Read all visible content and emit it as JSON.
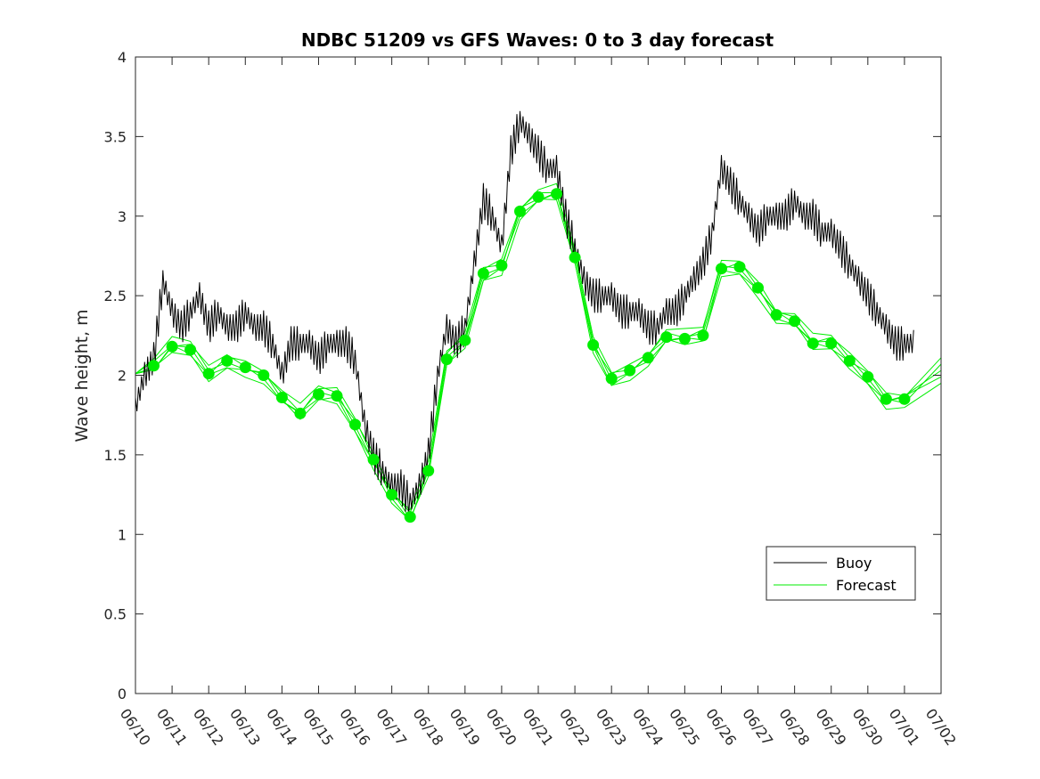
{
  "chart_data": {
    "type": "line",
    "title": "NDBC 51209 vs GFS Waves: 0 to 3 day forecast",
    "xlabel": "",
    "ylabel": "Wave height, m",
    "ylim": [
      0,
      4
    ],
    "y_ticks": [
      "0",
      "0.5",
      "1",
      "1.5",
      "2",
      "2.5",
      "3",
      "3.5",
      "4"
    ],
    "x_ticks": [
      "06/10",
      "06/11",
      "06/12",
      "06/13",
      "06/14",
      "06/15",
      "06/16",
      "06/17",
      "06/18",
      "06/19",
      "06/20",
      "06/21",
      "06/22",
      "06/23",
      "06/24",
      "06/25",
      "06/26",
      "06/27",
      "06/28",
      "06/29",
      "06/30",
      "07/01",
      "07/02"
    ],
    "x_unit": "days since 06/10",
    "xlim": [
      0,
      22
    ],
    "grid": false,
    "legend": {
      "position": "bottom-right",
      "entries": [
        "Buoy",
        "Forecast"
      ]
    },
    "colors": {
      "buoy": "#000000",
      "forecast": "#00ee00"
    },
    "buoy": {
      "name": "Buoy",
      "x": [
        0,
        0.25,
        0.5,
        0.75,
        1,
        1.25,
        1.5,
        1.75,
        2,
        2.25,
        2.5,
        2.75,
        3,
        3.25,
        3.5,
        3.75,
        4,
        4.25,
        4.5,
        4.75,
        5,
        5.25,
        5.5,
        5.75,
        6,
        6.25,
        6.5,
        6.75,
        7,
        7.25,
        7.5,
        7.75,
        8,
        8.25,
        8.5,
        8.75,
        9,
        9.25,
        9.5,
        9.75,
        10,
        10.25,
        10.5,
        10.75,
        11,
        11.25,
        11.5,
        11.75,
        12,
        12.25,
        12.5,
        12.75,
        13,
        13.25,
        13.5,
        13.75,
        14,
        14.25,
        14.5,
        14.75,
        15,
        15.25,
        15.5,
        15.75,
        16,
        16.25,
        16.5,
        16.75,
        17,
        17.25,
        17.5,
        17.75,
        18,
        18.25,
        18.5,
        18.75,
        19,
        19.25,
        19.5,
        19.75,
        20,
        20.25,
        20.5,
        20.75,
        21,
        21.25
      ],
      "y": [
        1.8,
        2.0,
        2.1,
        2.6,
        2.4,
        2.3,
        2.4,
        2.5,
        2.3,
        2.4,
        2.3,
        2.3,
        2.4,
        2.3,
        2.3,
        2.2,
        2.0,
        2.2,
        2.2,
        2.2,
        2.1,
        2.2,
        2.2,
        2.2,
        2.1,
        1.7,
        1.5,
        1.4,
        1.3,
        1.3,
        1.2,
        1.3,
        1.5,
        2.0,
        2.3,
        2.2,
        2.3,
        2.7,
        3.1,
        3.0,
        2.8,
        3.4,
        3.6,
        3.5,
        3.4,
        3.3,
        3.3,
        3.0,
        2.8,
        2.6,
        2.5,
        2.5,
        2.5,
        2.4,
        2.4,
        2.4,
        2.3,
        2.3,
        2.4,
        2.4,
        2.5,
        2.6,
        2.7,
        2.9,
        3.3,
        3.2,
        3.1,
        3.0,
        2.9,
        3.0,
        3.0,
        3.0,
        3.1,
        3.0,
        3.0,
        2.9,
        2.9,
        2.8,
        2.7,
        2.6,
        2.5,
        2.4,
        2.3,
        2.2,
        2.2,
        2.2
      ]
    },
    "forecast": {
      "name": "Forecast",
      "x": [
        0.5,
        1.0,
        1.5,
        2.0,
        2.5,
        3.0,
        3.5,
        4.0,
        4.5,
        5.0,
        5.5,
        6.0,
        6.5,
        7.0,
        7.5,
        8.0,
        8.5,
        9.0,
        9.5,
        10.0,
        10.5,
        11.0,
        11.5,
        12.0,
        12.5,
        13.0,
        13.5,
        14.0,
        14.5,
        15.0,
        15.5,
        16.0,
        16.5,
        17.0,
        17.5,
        18.0,
        18.5,
        19.0,
        19.5,
        20.0,
        20.5,
        21.0
      ],
      "y": [
        2.06,
        2.18,
        2.16,
        2.01,
        2.09,
        2.05,
        2.0,
        1.86,
        1.76,
        1.88,
        1.87,
        1.69,
        1.47,
        1.25,
        1.11,
        1.4,
        2.1,
        2.22,
        2.64,
        2.69,
        3.03,
        3.12,
        3.14,
        2.74,
        2.19,
        1.98,
        2.03,
        2.11,
        2.24,
        2.23,
        2.25,
        2.67,
        2.68,
        2.55,
        2.38,
        2.34,
        2.2,
        2.2,
        2.09,
        1.99,
        1.85,
        1.85
      ]
    }
  }
}
